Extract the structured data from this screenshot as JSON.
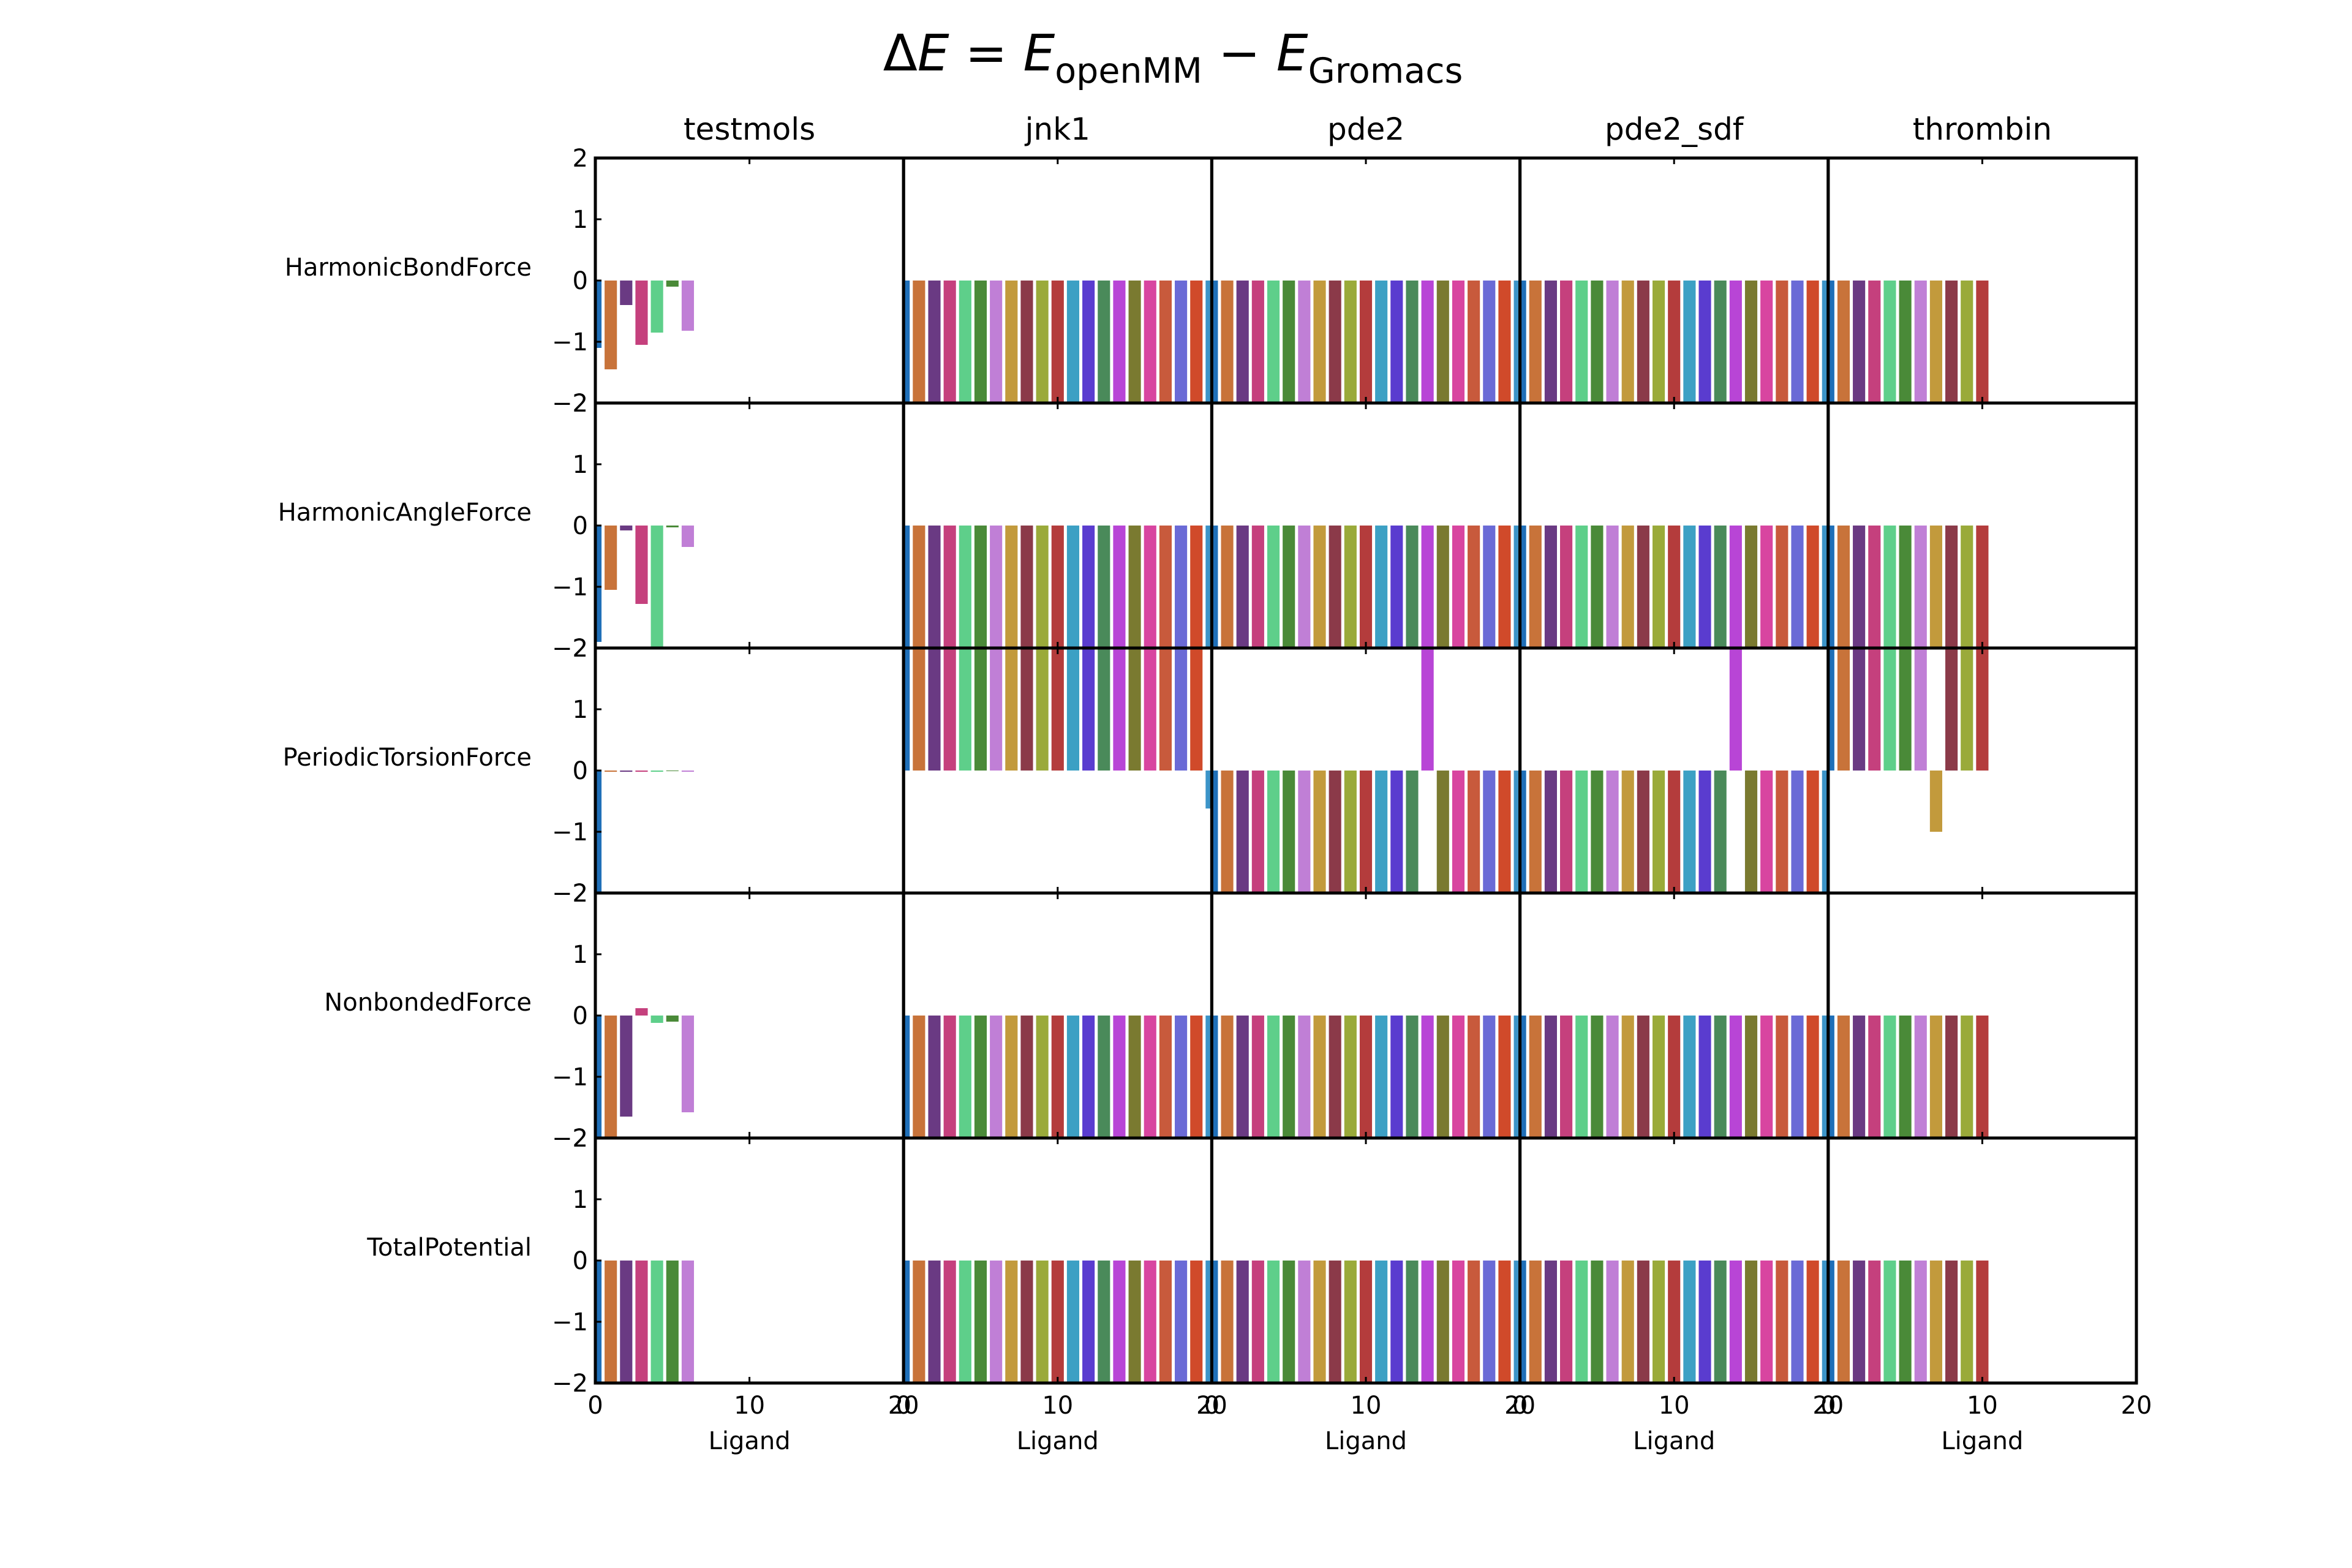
{
  "chart_data": {
    "type": "bar",
    "title_parts": {
      "delta": "Δ",
      "e1": "E",
      "eq": " = ",
      "e2": "E",
      "sub1": "openMM",
      "minus": " − ",
      "e3": "E",
      "sub2": "Gromacs"
    },
    "xlabel": "Ligand",
    "xlim": [
      0,
      20
    ],
    "xticks": [
      "0",
      "10",
      "20"
    ],
    "ylim": [
      -2,
      2
    ],
    "yticks": [
      "−2",
      "−1",
      "0",
      "1",
      "2"
    ],
    "grid": false,
    "legend": "none",
    "columns": [
      "testmols",
      "jnk1",
      "pde2",
      "pde2_sdf",
      "thrombin"
    ],
    "rows": [
      "HarmonicBondForce",
      "HarmonicAngleForce",
      "PeriodicTorsionForce",
      "NonbondedForce",
      "TotalPotential"
    ],
    "palette": [
      "#1f6fb8",
      "#c8733a",
      "#6a3a83",
      "#c5407d",
      "#5ecf8a",
      "#4a8a38",
      "#c07fd6",
      "#c29a3c",
      "#8b3a49",
      "#9aaa3a",
      "#b43c3c",
      "#3ca0c4",
      "#5a3ccf",
      "#4a8a5a",
      "#b845d6",
      "#7a7a30",
      "#d845a0",
      "#c85a3c",
      "#6a6ad6",
      "#d04a2a",
      "#3c94c8"
    ],
    "panels": {
      "HarmonicBondForce": {
        "testmols": [
          -1.1,
          -1.45,
          -0.4,
          -1.05,
          -0.85,
          -0.1,
          -0.82
        ],
        "jnk1": [
          -2,
          -2,
          -2,
          -2,
          -2,
          -2,
          -2,
          -2,
          -2,
          -2,
          -2,
          -2,
          -2,
          -2,
          -2,
          -2,
          -2,
          -2,
          -2,
          -2,
          -2
        ],
        "pde2": [
          -2,
          -2,
          -2,
          -2,
          -2,
          -2,
          -2,
          -2,
          -2,
          -2,
          -2,
          -2,
          -2,
          -2,
          -2,
          -2,
          -2,
          -2,
          -2,
          -2,
          -2
        ],
        "pde2_sdf": [
          -2,
          -2,
          -2,
          -2,
          -2,
          -2,
          -2,
          -2,
          -2,
          -2,
          -2,
          -2,
          -2,
          -2,
          -2,
          -2,
          -2,
          -2,
          -2,
          -2,
          -2
        ],
        "thrombin": [
          -2,
          -2,
          -2,
          -2,
          -2,
          -2,
          -2,
          -2,
          -2,
          -2,
          -2
        ]
      },
      "HarmonicAngleForce": {
        "testmols": [
          -1.9,
          -1.05,
          -0.08,
          -1.28,
          -2,
          -0.03,
          -0.35
        ],
        "jnk1": [
          -2,
          -2,
          -2,
          -2,
          -2,
          -2,
          -2,
          -2,
          -2,
          -2,
          -2,
          -2,
          -2,
          -2,
          -2,
          -2,
          -2,
          -2,
          -2,
          -2,
          -2
        ],
        "pde2": [
          -2,
          -2,
          -2,
          -2,
          -2,
          -2,
          -2,
          -2,
          -2,
          -2,
          -2,
          -2,
          -2,
          -2,
          -2,
          -2,
          -2,
          -2,
          -2,
          -2,
          -2
        ],
        "pde2_sdf": [
          -2,
          -2,
          -2,
          -2,
          -2,
          -2,
          -2,
          -2,
          -2,
          -2,
          -2,
          -2,
          -2,
          -2,
          -2,
          -2,
          -2,
          -2,
          -2,
          -2,
          -2
        ],
        "thrombin": [
          -2,
          -2,
          -2,
          -2,
          -2,
          -2,
          -2,
          -2,
          -2,
          -2,
          -2
        ]
      },
      "PeriodicTorsionForce": {
        "testmols": [
          -2,
          -0.02,
          -0.02,
          -0.02,
          -0.02,
          -0.01,
          -0.02
        ],
        "jnk1": [
          2,
          2,
          2,
          2,
          2,
          2,
          2,
          2,
          2,
          2,
          2,
          2,
          2,
          2,
          2,
          2,
          2,
          2,
          2,
          2,
          -0.62
        ],
        "pde2": [
          -2,
          -2,
          -2,
          -2,
          -2,
          -2,
          -2,
          -2,
          -2,
          -2,
          -2,
          -2,
          -2,
          -2,
          2,
          -2,
          -2,
          -2,
          -2,
          -2,
          -2
        ],
        "pde2_sdf": [
          -2,
          -2,
          -2,
          -2,
          -2,
          -2,
          -2,
          -2,
          -2,
          -2,
          -2,
          -2,
          -2,
          -2,
          2,
          -2,
          -2,
          -2,
          -2,
          -2,
          -2
        ],
        "thrombin": [
          2,
          2,
          2,
          2,
          2,
          2,
          2,
          -1,
          2,
          2,
          2
        ]
      },
      "NonbondedForce": {
        "testmols": [
          -2,
          -2,
          -1.65,
          0.12,
          -0.12,
          -0.1,
          -1.58
        ],
        "jnk1": [
          -2,
          -2,
          -2,
          -2,
          -2,
          -2,
          -2,
          -2,
          -2,
          -2,
          -2,
          -2,
          -2,
          -2,
          -2,
          -2,
          -2,
          -2,
          -2,
          -2,
          -2
        ],
        "pde2": [
          -2,
          -2,
          -2,
          -2,
          -2,
          -2,
          -2,
          -2,
          -2,
          -2,
          -2,
          -2,
          -2,
          -2,
          -2,
          -2,
          -2,
          -2,
          -2,
          -2,
          -2
        ],
        "pde2_sdf": [
          -2,
          -2,
          -2,
          -2,
          -2,
          -2,
          -2,
          -2,
          -2,
          -2,
          -2,
          -2,
          -2,
          -2,
          -2,
          -2,
          -2,
          -2,
          -2,
          -2,
          -2
        ],
        "thrombin": [
          -2,
          -2,
          -2,
          -2,
          -2,
          -2,
          -2,
          -2,
          -2,
          -2,
          -2
        ]
      },
      "TotalPotential": {
        "testmols": [
          -2,
          -2,
          -2,
          -2,
          -2,
          -2,
          -2
        ],
        "jnk1": [
          -2,
          -2,
          -2,
          -2,
          -2,
          -2,
          -2,
          -2,
          -2,
          -2,
          -2,
          -2,
          -2,
          -2,
          -2,
          -2,
          -2,
          -2,
          -2,
          -2,
          -2
        ],
        "pde2": [
          -2,
          -2,
          -2,
          -2,
          -2,
          -2,
          -2,
          -2,
          -2,
          -2,
          -2,
          -2,
          -2,
          -2,
          -2,
          -2,
          -2,
          -2,
          -2,
          -2,
          -2
        ],
        "pde2_sdf": [
          -2,
          -2,
          -2,
          -2,
          -2,
          -2,
          -2,
          -2,
          -2,
          -2,
          -2,
          -2,
          -2,
          -2,
          -2,
          -2,
          -2,
          -2,
          -2,
          -2,
          -2
        ],
        "thrombin": [
          -2,
          -2,
          -2,
          -2,
          -2,
          -2,
          -2,
          -2,
          -2,
          -2,
          -2
        ]
      }
    }
  }
}
